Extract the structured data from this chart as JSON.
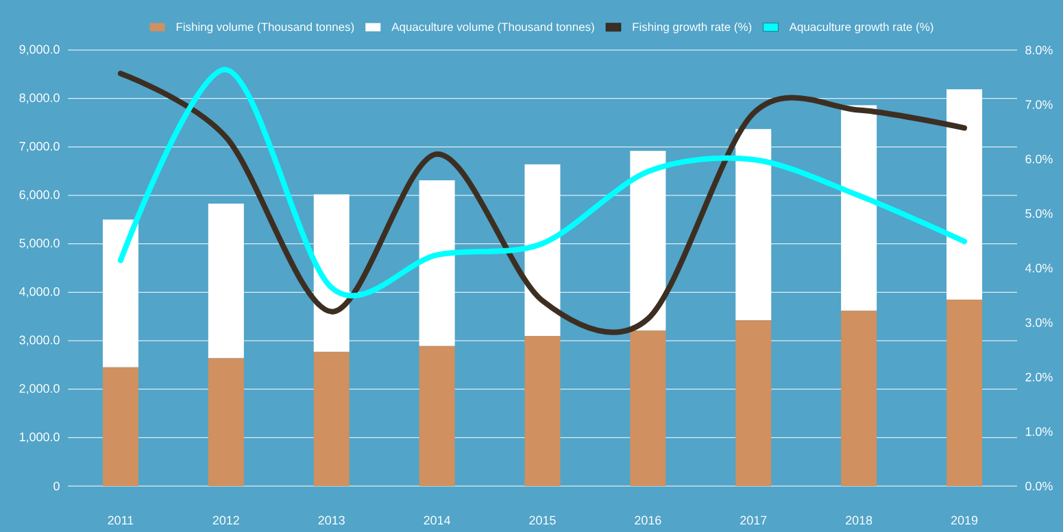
{
  "chart_data": {
    "type": "bar",
    "stacked": true,
    "legend": "top",
    "grid": "y",
    "categories": [
      "2011",
      "2012",
      "2013",
      "2014",
      "2015",
      "2016",
      "2017",
      "2018",
      "2019"
    ],
    "series": [
      {
        "name": "Fishing volume (Thousand tonnes)",
        "color": "#d09060",
        "values": [
          2450,
          2640,
          2770,
          2890,
          3100,
          3210,
          3420,
          3620,
          3850
        ]
      },
      {
        "name": "Aquaculture volume (Thousand tonnes)",
        "color": "#ffffff",
        "values": [
          3050,
          3190,
          3250,
          3420,
          3540,
          3710,
          3950,
          4240,
          4340
        ]
      },
      {
        "name": "Fishing growth rate (%)",
        "type": "line",
        "axis": "y2",
        "color": "#3d2e22",
        "values": [
          7.57,
          6.4,
          3.2,
          6.09,
          3.4,
          3.07,
          6.84,
          6.9,
          6.57
        ]
      },
      {
        "name": "Aquaculture growth rate (%)",
        "type": "line",
        "axis": "y2",
        "color": "#00ffff",
        "values": [
          4.14,
          7.64,
          3.64,
          4.24,
          4.45,
          5.77,
          5.99,
          5.33,
          4.49
        ]
      }
    ],
    "ylim": [
      0,
      9000
    ],
    "yticks": [
      0,
      {
        "value": 1000,
        "label": "1,000.0"
      },
      {
        "value": 2000,
        "label": "2,000.0"
      },
      {
        "value": 3000,
        "label": "3,000.0"
      },
      {
        "value": 4000,
        "label": "4,000.0"
      },
      {
        "value": 5000,
        "label": "5,000.0"
      },
      {
        "value": 6000,
        "label": "6,000.0"
      },
      {
        "value": 7000,
        "label": "7,000.0"
      },
      {
        "value": 8000,
        "label": "8,000.0"
      },
      {
        "value": 9000,
        "label": "9,000.0"
      }
    ],
    "y2lim": [
      0,
      8
    ],
    "y2ticks": [
      {
        "value": 0,
        "label": "0.0%"
      },
      {
        "value": 1,
        "label": "1.0%"
      },
      {
        "value": 2,
        "label": "2.0%"
      },
      {
        "value": 3,
        "label": "3.0%"
      },
      {
        "value": 4,
        "label": "4.0%"
      },
      {
        "value": 5,
        "label": "5.0%"
      },
      {
        "value": 6,
        "label": "6.0%"
      },
      {
        "value": 7,
        "label": "7.0%"
      },
      {
        "value": 8,
        "label": "8.0%"
      }
    ]
  }
}
